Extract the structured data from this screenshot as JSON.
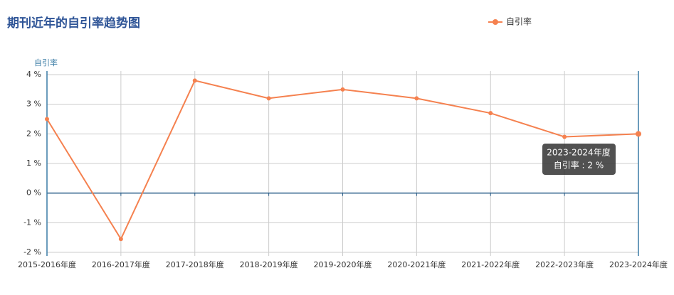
{
  "chart_data": {
    "type": "line",
    "title": "期刊近年的自引率趋势图",
    "y_axis_label": "自引率",
    "categories": [
      "2015-2016年度",
      "2016-2017年度",
      "2017-2018年度",
      "2018-2019年度",
      "2019-2020年度",
      "2020-2021年度",
      "2021-2022年度",
      "2022-2023年度",
      "2023-2024年度"
    ],
    "series": [
      {
        "name": "自引率",
        "color": "#f5814f",
        "values": [
          2.5,
          -1.55,
          3.8,
          3.2,
          3.5,
          3.2,
          2.7,
          1.9,
          2
        ]
      }
    ],
    "ylim": [
      -2.12,
      4.12
    ],
    "yticks": [
      {
        "value": -2,
        "label": "-2 %"
      },
      {
        "value": -1,
        "label": "-1 %"
      },
      {
        "value": 0,
        "label": "0 %"
      },
      {
        "value": 1,
        "label": "1 %"
      },
      {
        "value": 2,
        "label": "2 %"
      },
      {
        "value": 3,
        "label": "3 %"
      },
      {
        "value": 4,
        "label": "4 %"
      }
    ],
    "grid": true,
    "legend_position": "top-right",
    "tooltip": {
      "title": "2023-2024年度",
      "text": "自引率 : 2 %"
    }
  }
}
